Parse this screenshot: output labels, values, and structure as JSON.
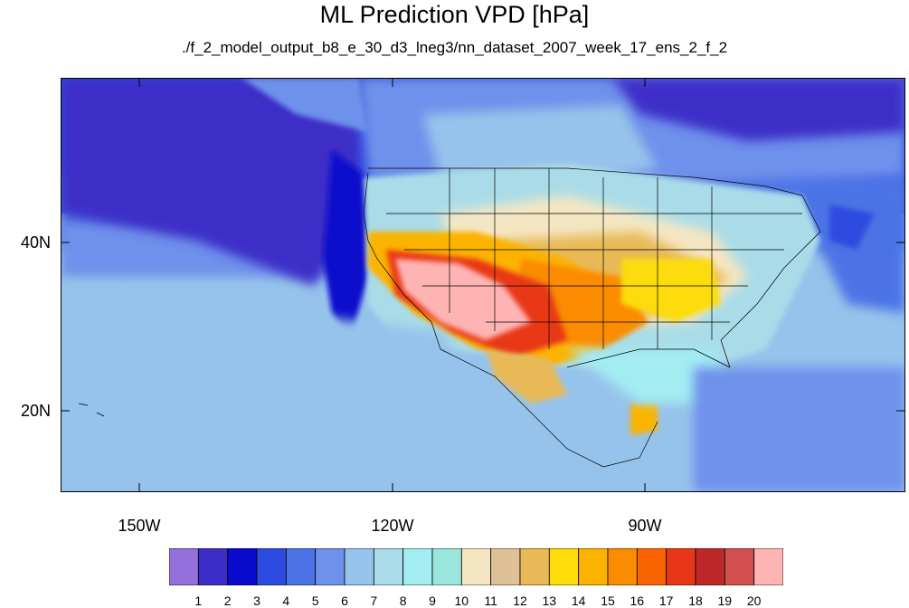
{
  "title": "ML Prediction VPD [hPa]",
  "subtitle": "./f_2_model_output_b8_e_30_d3_lneg3/nn_dataset_2007_week_17_ens_2_f_2",
  "lat_labels": [
    "40N",
    "20N"
  ],
  "lon_labels": [
    "150W",
    "120W",
    "90W"
  ],
  "colorbar": {
    "labels": [
      "1",
      "2",
      "3",
      "4",
      "5",
      "6",
      "7",
      "8",
      "9",
      "10",
      "11",
      "12",
      "13",
      "14",
      "15",
      "16",
      "17",
      "18",
      "19",
      "20"
    ],
    "colors": [
      "#9370db",
      "#3c2dc8",
      "#0a0acc",
      "#2d4be1",
      "#4b73e6",
      "#6e91eb",
      "#96c3eb",
      "#a9dce8",
      "#a3ecf2",
      "#9ae6dc",
      "#f5e6c3",
      "#dfc196",
      "#e8b956",
      "#fcdc0a",
      "#fbb300",
      "#fb8c00",
      "#fa6400",
      "#e83718",
      "#be2828",
      "#d25050",
      "#ffb4b4"
    ]
  }
}
